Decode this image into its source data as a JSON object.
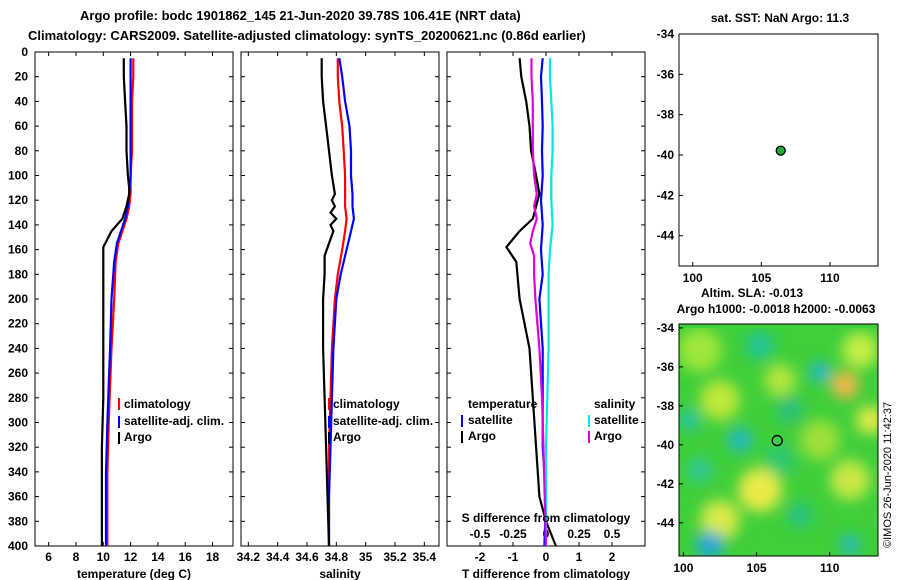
{
  "title": {
    "line1": "Argo profile: bodc 1901862_145 21-Jun-2020 39.78S 106.41E (NRT data)",
    "line2": "Climatology: CARS2009. Satellite-adjusted climatology: synTS_20200621.nc (0.86d earlier)"
  },
  "colors": {
    "climatology": "#ff0000",
    "satellite": "#0000ff",
    "argo": "#000000",
    "sal_sat": "#00e5ee",
    "sal_argo": "#dd00dd"
  },
  "chart_data": [
    {
      "type": "line",
      "title": "",
      "xlabel": "temperature (deg C)",
      "ylabel": "",
      "xlim": [
        5,
        19.5
      ],
      "ylim": [
        400,
        0
      ],
      "xticks": [
        6,
        8,
        10,
        12,
        14,
        16,
        18
      ],
      "yticks": [
        0,
        20,
        40,
        60,
        80,
        100,
        120,
        140,
        160,
        180,
        200,
        220,
        240,
        260,
        280,
        300,
        320,
        340,
        360,
        380,
        400
      ],
      "legend": [
        "climatology",
        "satellite-adj. clim.",
        "Argo"
      ],
      "series": [
        {
          "name": "climatology",
          "depth": [
            5,
            20,
            40,
            60,
            80,
            100,
            115,
            125,
            135,
            145,
            155,
            170,
            200,
            240,
            270,
            300,
            340,
            380,
            400
          ],
          "values": [
            12.2,
            12.2,
            12.1,
            12.1,
            12.1,
            12.0,
            12.0,
            11.9,
            11.7,
            11.4,
            11.1,
            10.9,
            10.8,
            10.6,
            10.5,
            10.4,
            10.3,
            10.3,
            10.3
          ]
        },
        {
          "name": "satellite-adj. clim.",
          "depth": [
            5,
            20,
            40,
            60,
            80,
            100,
            115,
            125,
            135,
            145,
            155,
            170,
            200,
            240,
            270,
            300,
            340,
            380,
            400
          ],
          "values": [
            12.0,
            12.0,
            12.0,
            12.0,
            12.0,
            12.0,
            11.9,
            11.8,
            11.6,
            11.3,
            11.0,
            10.8,
            10.6,
            10.5,
            10.4,
            10.3,
            10.2,
            10.2,
            10.2
          ]
        },
        {
          "name": "Argo",
          "depth": [
            5,
            20,
            40,
            60,
            80,
            100,
            110,
            115,
            125,
            135,
            145,
            158,
            165,
            200,
            240,
            280,
            320,
            360,
            400
          ],
          "values": [
            11.5,
            11.5,
            11.6,
            11.7,
            11.7,
            11.8,
            11.9,
            11.9,
            11.7,
            11.4,
            10.6,
            10.0,
            10.0,
            10.0,
            10.0,
            10.0,
            9.9,
            9.9,
            9.9
          ]
        }
      ]
    },
    {
      "type": "line",
      "xlabel": "salinity",
      "ylabel": "",
      "xlim": [
        34.15,
        35.5
      ],
      "ylim": [
        400,
        0
      ],
      "xticks": [
        "34.2",
        "34.4",
        "34.6",
        "34.8",
        "35",
        "35.2",
        "35.4"
      ],
      "legend": [
        "climatology",
        "satellite-adj. clim.",
        "Argo"
      ],
      "series": [
        {
          "name": "climatology",
          "depth": [
            5,
            20,
            40,
            60,
            80,
            100,
            115,
            125,
            135,
            145,
            160,
            180,
            200,
            240,
            280,
            320,
            360,
            400
          ],
          "values": [
            34.81,
            34.81,
            34.82,
            34.84,
            34.85,
            34.86,
            34.86,
            34.86,
            34.87,
            34.86,
            34.84,
            34.81,
            34.79,
            34.77,
            34.76,
            34.75,
            34.75,
            34.75
          ]
        },
        {
          "name": "satellite-adj. clim.",
          "depth": [
            5,
            20,
            40,
            60,
            80,
            100,
            115,
            125,
            135,
            145,
            160,
            180,
            200,
            240,
            280,
            320,
            360,
            400
          ],
          "values": [
            34.82,
            34.84,
            34.86,
            34.89,
            34.9,
            34.9,
            34.91,
            34.91,
            34.92,
            34.9,
            34.87,
            34.83,
            34.8,
            34.78,
            34.77,
            34.76,
            34.75,
            34.75
          ]
        },
        {
          "name": "Argo",
          "depth": [
            5,
            20,
            40,
            60,
            80,
            100,
            115,
            120,
            125,
            130,
            135,
            140,
            145,
            155,
            165,
            180,
            200,
            240,
            280,
            320,
            360,
            400
          ],
          "values": [
            34.7,
            34.7,
            34.71,
            34.73,
            34.75,
            34.77,
            34.79,
            34.77,
            34.79,
            34.76,
            34.8,
            34.76,
            34.78,
            34.75,
            34.72,
            34.72,
            34.71,
            34.71,
            34.72,
            34.73,
            34.74,
            34.75
          ]
        }
      ]
    },
    {
      "type": "line",
      "xlabel": "T difference from climatology",
      "ylabel": "",
      "xlim": [
        -3,
        3
      ],
      "ylim": [
        400,
        0
      ],
      "xticks": [
        "-2",
        "-1",
        "0",
        "1",
        "2"
      ],
      "secondary_xlabel": "S difference from climatology",
      "secondary_xticks": [
        "-0.5",
        "-0.25",
        "0",
        "0.25",
        "0.5"
      ],
      "secondary_xlim": [
        -0.75,
        0.75
      ],
      "legend_temperature": [
        "satellite",
        "Argo"
      ],
      "legend_salinity": [
        "satellite",
        "Argo"
      ],
      "legend_titles": [
        "temperature",
        "salinity"
      ],
      "series": [
        {
          "name": "temperature satellite",
          "axis": "T",
          "depth": [
            5,
            20,
            40,
            60,
            80,
            100,
            120,
            140,
            160,
            180,
            200,
            240,
            280,
            320,
            360,
            400
          ],
          "values": [
            -0.1,
            -0.15,
            -0.12,
            -0.1,
            -0.12,
            -0.1,
            -0.15,
            -0.1,
            -0.15,
            -0.1,
            -0.2,
            -0.1,
            -0.1,
            -0.1,
            0,
            -0.05
          ]
        },
        {
          "name": "temperature Argo",
          "axis": "T",
          "depth": [
            5,
            20,
            40,
            60,
            80,
            100,
            115,
            125,
            135,
            145,
            158,
            170,
            200,
            240,
            280,
            320,
            360,
            380,
            400
          ],
          "values": [
            -0.8,
            -0.75,
            -0.6,
            -0.5,
            -0.45,
            -0.3,
            -0.2,
            -0.3,
            -0.4,
            -0.8,
            -1.2,
            -0.9,
            -0.8,
            -0.5,
            -0.4,
            -0.3,
            -0.2,
            0,
            0.3
          ]
        },
        {
          "name": "salinity satellite",
          "axis": "S",
          "depth": [
            5,
            20,
            40,
            60,
            80,
            100,
            120,
            140,
            160,
            180,
            200,
            240,
            280,
            320,
            360,
            400
          ],
          "values": [
            0.03,
            0.03,
            0.04,
            0.05,
            0.05,
            0.04,
            0.04,
            0.05,
            0.03,
            0.02,
            0.02,
            0.02,
            0.01,
            0.0,
            0.0,
            0.0
          ]
        },
        {
          "name": "salinity Argo",
          "axis": "S",
          "depth": [
            5,
            20,
            40,
            60,
            80,
            100,
            115,
            125,
            135,
            145,
            155,
            165,
            180,
            200,
            240,
            280,
            320,
            360,
            400
          ],
          "values": [
            -0.11,
            -0.11,
            -0.1,
            -0.1,
            -0.1,
            -0.09,
            -0.07,
            -0.09,
            -0.07,
            -0.1,
            -0.12,
            -0.09,
            -0.09,
            -0.08,
            -0.05,
            -0.03,
            -0.02,
            -0.01,
            0.0
          ]
        }
      ]
    },
    {
      "type": "scatter",
      "title": "sat. SST: NaN Argo: 11.3",
      "xlim": [
        99,
        113.5
      ],
      "ylim": [
        -45.5,
        -34
      ],
      "xticks": [
        100,
        105,
        110
      ],
      "yticks": [
        -34,
        -36,
        -38,
        -40,
        -42,
        -44
      ],
      "points": [
        {
          "x": 106.41,
          "y": -39.78
        }
      ]
    },
    {
      "type": "heatmap",
      "title_line1": "Altim. SLA: -0.013",
      "title_line2": "Argo h1000: -0.0018 h2000: -0.0063",
      "xlim": [
        99.7,
        113.3
      ],
      "ylim": [
        -45.7,
        -33.8
      ],
      "xticks": [
        100,
        105,
        110
      ],
      "yticks": [
        -34,
        -36,
        -38,
        -40,
        -42,
        -44
      ],
      "points": [
        {
          "x": 106.41,
          "y": -39.78
        }
      ]
    }
  ],
  "watermark": "©IMOS 26-Jun-2020 11:42:37"
}
